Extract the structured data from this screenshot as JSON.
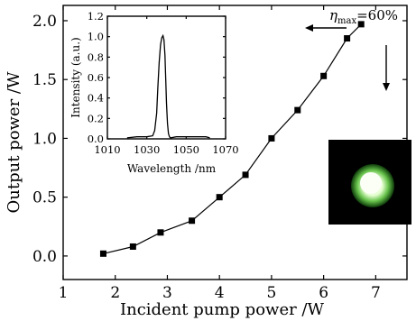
{
  "chart_data": [
    {
      "type": "line",
      "xlabel": "Incident pump power /W",
      "ylabel": "Output power /W",
      "xlim": [
        1,
        7.6
      ],
      "ylim": [
        -0.2,
        2.13
      ],
      "xticks": [
        1,
        2,
        3,
        4,
        5,
        6,
        7
      ],
      "yticks": [
        0.0,
        0.5,
        1.0,
        1.5,
        2.0
      ],
      "ytick_labels": [
        "0.0",
        "0.5",
        "1.0",
        "1.5",
        "2.0"
      ],
      "marker": "square",
      "grid": false,
      "series": [
        {
          "x": [
            1.77,
            2.34,
            2.87,
            3.47,
            4.0,
            4.5,
            5.0,
            5.5,
            6.0,
            6.45,
            6.72
          ],
          "y": [
            0.02,
            0.08,
            0.2,
            0.3,
            0.5,
            0.69,
            1.0,
            1.24,
            1.53,
            1.85,
            1.97
          ]
        }
      ],
      "annotation": {
        "symbol": "η",
        "subscript": "max",
        "text": "=60%"
      }
    },
    {
      "type": "line",
      "xlabel": "Wavelength /nm",
      "ylabel": "Intensity (a.u.)",
      "xlim": [
        1010,
        1070
      ],
      "ylim": [
        0,
        1.2
      ],
      "xticks": [
        1010,
        1030,
        1050,
        1070
      ],
      "yticks": [
        0.0,
        0.2,
        0.4,
        0.6,
        0.8,
        1.0,
        1.2
      ],
      "ytick_labels": [
        "0.0",
        "0.2",
        "0.4",
        "0.6",
        "0.8",
        "1.0",
        "1.2"
      ],
      "grid": false,
      "series": [
        {
          "x": [
            1020,
            1025,
            1030,
            1033,
            1034,
            1035,
            1035.6,
            1036.3,
            1037,
            1037.6,
            1038.2,
            1038.7,
            1039.2,
            1039.6,
            1040,
            1040.5,
            1041,
            1041.5,
            1042,
            1045,
            1050,
            1055,
            1060,
            1062
          ],
          "y": [
            0.01,
            0.02,
            0.02,
            0.03,
            0.08,
            0.25,
            0.5,
            0.75,
            0.92,
            0.99,
            1.01,
            0.97,
            0.82,
            0.6,
            0.35,
            0.15,
            0.05,
            0.02,
            0.01,
            0.02,
            0.02,
            0.02,
            0.02,
            0.01
          ]
        }
      ]
    }
  ],
  "colors": {
    "spot_outer": "#2f8f2a",
    "spot_inner": "#f4ffe8",
    "spot_background": "#000000"
  }
}
